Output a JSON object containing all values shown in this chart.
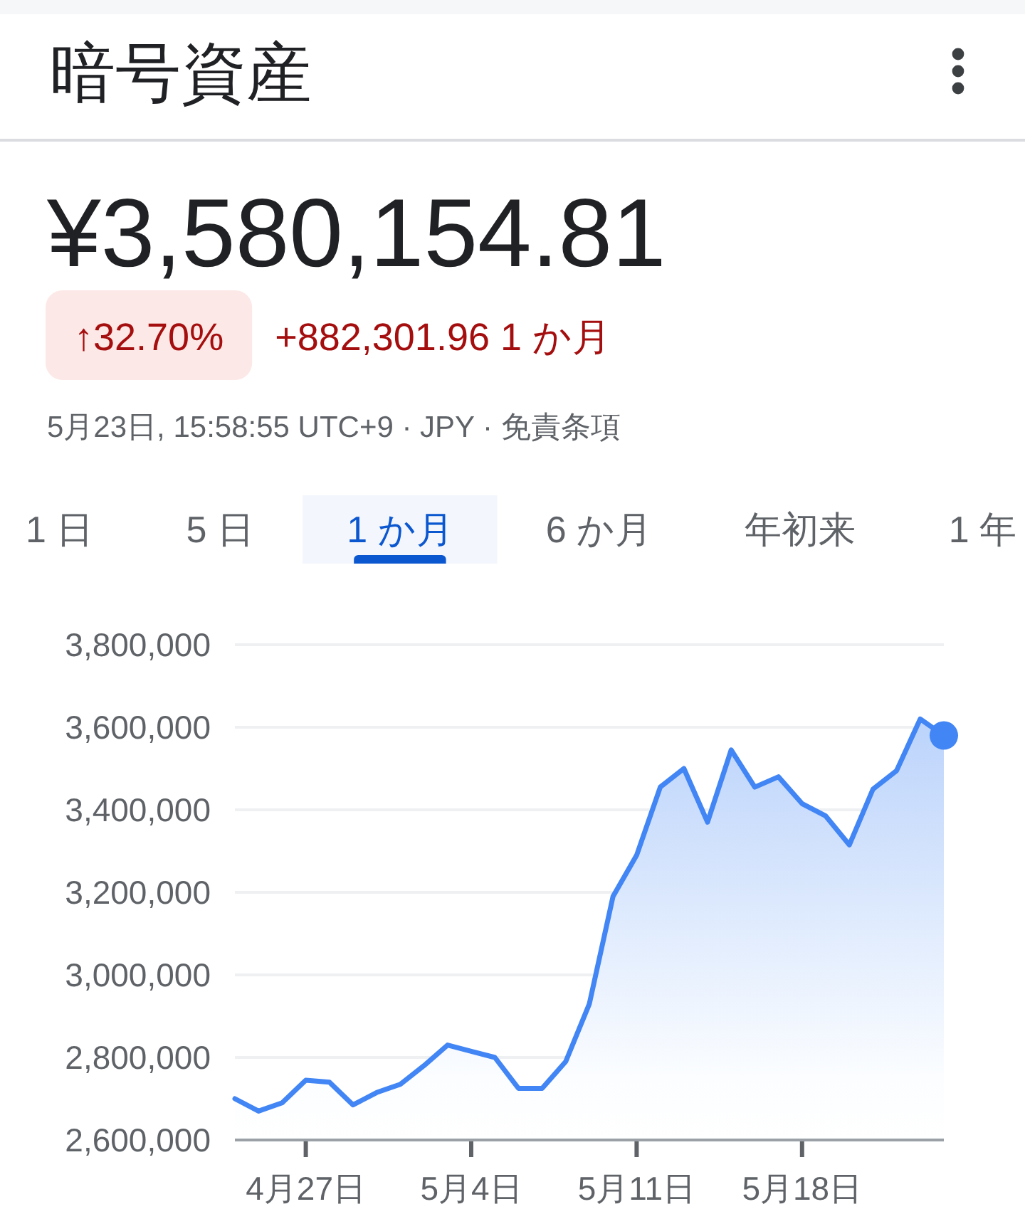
{
  "chart_data": {
    "type": "area",
    "title": "暗号資産",
    "subtitle": "¥3,580,154.81",
    "annotations": [
      "↑32.70%",
      "+882,301.96 1 か月",
      "5月23日, 15:58:55 UTC+9 · JPY · 免責条項",
      "1 日",
      "5 日",
      "1 か月",
      "6 か月",
      "年初来",
      "1 年"
    ],
    "x": [
      "--04-24",
      "--04-25",
      "--04-26",
      "--04-27",
      "--04-28",
      "--04-29",
      "--04-30",
      "--05-01",
      "--05-02",
      "--05-03",
      "--05-04",
      "--05-05",
      "--05-06",
      "--05-07",
      "--05-08",
      "--05-09",
      "--05-10",
      "--05-11",
      "--05-12",
      "--05-13",
      "--05-14",
      "--05-15",
      "--05-16",
      "--05-17",
      "--05-18",
      "--05-19",
      "--05-20",
      "--05-21",
      "--05-22",
      "--05-23",
      "--05-24"
    ],
    "series": [
      {
        "color": "#4285f4",
        "values": [
          2700000,
          2670000,
          2690000,
          2745000,
          2740000,
          2685000,
          2715000,
          2735000,
          2780000,
          2830000,
          2815000,
          2800000,
          2725000,
          2725000,
          2790000,
          2930000,
          3190000,
          3290000,
          3455000,
          3500000,
          3370000,
          3545000,
          3455000,
          3480000,
          3415000,
          3385000,
          3315000,
          3450000,
          3495000,
          3620000,
          3580000
        ]
      },
      {
        "type": "scatter",
        "marker": "circle",
        "color": "#4285f4",
        "x": [
          "--05-24"
        ],
        "values": [
          3580000
        ]
      }
    ],
    "xlim": [
      "--04-24",
      "--05-24"
    ],
    "xticks": [
      {
        "value": "--04-27",
        "label": "4月27日"
      },
      {
        "value": "--05-04",
        "label": "5月4日"
      },
      {
        "value": "--05-11",
        "label": "5月11日"
      },
      {
        "value": "--05-18",
        "label": "5月18日"
      }
    ],
    "ylim": [
      2600000,
      3800000
    ],
    "yticks": [
      {
        "value": 2600000,
        "label": "2,600,000"
      },
      {
        "value": 2800000,
        "label": "2,800,000"
      },
      {
        "value": 3000000,
        "label": "3,000,000"
      },
      {
        "value": 3200000,
        "label": "3,200,000"
      },
      {
        "value": 3400000,
        "label": "3,400,000"
      },
      {
        "value": 3600000,
        "label": "3,600,000"
      },
      {
        "value": 3800000,
        "label": "3,800,000"
      }
    ],
    "grid": "y"
  }
}
